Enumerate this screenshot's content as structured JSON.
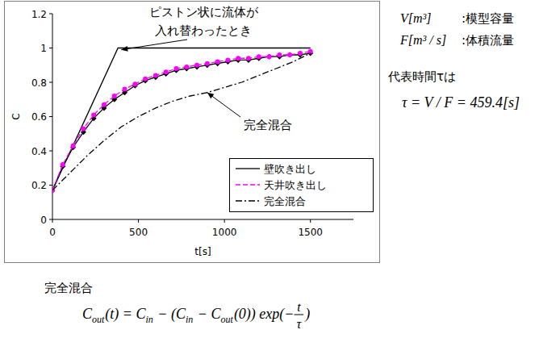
{
  "chart_data": {
    "type": "line",
    "x_label": "t[s]",
    "y_label": "C",
    "xlim": [
      0,
      1750
    ],
    "ylim": [
      0,
      1.2
    ],
    "xticks": [
      0,
      500,
      1000,
      1500
    ],
    "yticks": [
      0,
      0.2,
      0.4,
      0.6,
      0.8,
      1,
      1.2
    ],
    "grid": false,
    "legend": "lower right",
    "series": [
      {
        "name": "壁吹き出し",
        "color": "#000000",
        "line_style": "solid",
        "marker": "diamond",
        "x": [
          0,
          60,
          120,
          180,
          240,
          300,
          360,
          420,
          480,
          540,
          600,
          660,
          720,
          780,
          840,
          900,
          960,
          1020,
          1080,
          1140,
          1200,
          1260,
          1320,
          1380,
          1440,
          1500
        ],
        "values": [
          0.17,
          0.31,
          0.42,
          0.51,
          0.59,
          0.65,
          0.7,
          0.74,
          0.78,
          0.81,
          0.83,
          0.85,
          0.87,
          0.88,
          0.89,
          0.9,
          0.91,
          0.92,
          0.93,
          0.93,
          0.94,
          0.95,
          0.95,
          0.96,
          0.96,
          0.97
        ]
      },
      {
        "name": "天井吹き出し",
        "color": "#ff00ff",
        "line_style": "dashed",
        "marker": "circle",
        "x": [
          0,
          60,
          120,
          180,
          240,
          300,
          360,
          420,
          480,
          540,
          600,
          660,
          720,
          780,
          840,
          900,
          960,
          1020,
          1080,
          1140,
          1200,
          1260,
          1320,
          1380,
          1440,
          1500
        ],
        "values": [
          0.17,
          0.32,
          0.43,
          0.53,
          0.61,
          0.67,
          0.72,
          0.76,
          0.79,
          0.82,
          0.84,
          0.86,
          0.88,
          0.89,
          0.9,
          0.91,
          0.92,
          0.93,
          0.94,
          0.94,
          0.95,
          0.95,
          0.96,
          0.96,
          0.97,
          0.98
        ]
      },
      {
        "name": "完全混合",
        "color": "#000000",
        "line_style": "dashdot",
        "marker": "none",
        "x": [
          0,
          100,
          200,
          300,
          400,
          500,
          600,
          700,
          800,
          900,
          1000,
          1100,
          1200,
          1300,
          1400,
          1500
        ],
        "values": [
          0.17,
          0.27,
          0.37,
          0.46,
          0.54,
          0.6,
          0.65,
          0.69,
          0.72,
          0.74,
          0.77,
          0.8,
          0.84,
          0.88,
          0.92,
          0.97
        ]
      }
    ],
    "reference_line": {
      "color": "#000000",
      "line_style": "solid",
      "x": [
        0,
        381,
        1500
      ],
      "y": [
        0.17,
        1,
        1
      ]
    },
    "annotations": [
      {
        "text": [
          "ピストン状に流体が",
          "入れ替わったとき"
        ],
        "target": [
          400,
          0.99
        ]
      },
      {
        "text": [
          "完全混合"
        ],
        "target": [
          900,
          0.74
        ]
      }
    ]
  },
  "side_text": {
    "rows": [
      {
        "symbol": "V[m³]",
        "desc": ":模型容量"
      },
      {
        "symbol": "F[m³ / s]",
        "desc": ":体積流量"
      }
    ],
    "tau_label": "代表時間τは",
    "tau_formula": "τ = V / F = 459.4[s]"
  },
  "formula_block": {
    "title": "完全混合",
    "formula": [
      {
        "text": "C",
        "sub": "out"
      },
      {
        "text": "(t) = "
      },
      {
        "text": "C",
        "sub": "in"
      },
      {
        "text": " − ("
      },
      {
        "text": "C",
        "sub": "in"
      },
      {
        "text": " − "
      },
      {
        "text": "C",
        "sub": "out"
      },
      {
        "text": "(0)) exp(−"
      },
      {
        "frac": [
          "t",
          "τ"
        ]
      },
      {
        "text": ")"
      }
    ]
  }
}
